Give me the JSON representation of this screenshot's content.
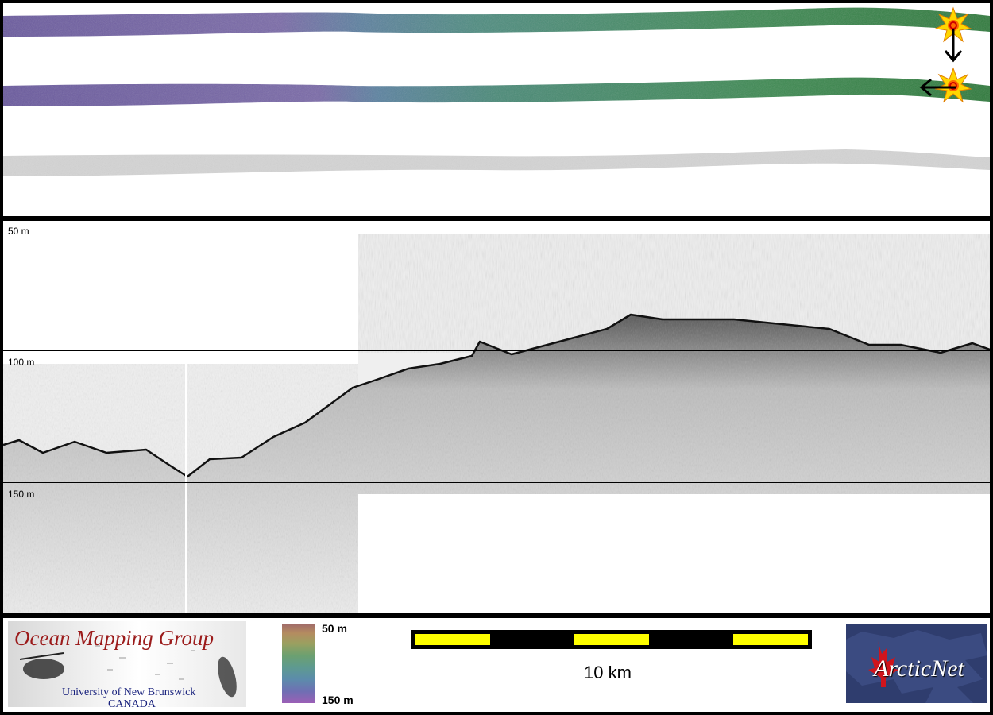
{
  "depth_scale": {
    "top_label": "50 m",
    "middle_label": "100 m",
    "bottom_label": "150 m"
  },
  "footer": {
    "logo_title": "Ocean Mapping Group",
    "logo_subtitle_1": "University of New Brunswick",
    "logo_subtitle_2": "CANADA",
    "colorbar_top": "50 m",
    "colorbar_bottom": "150 m",
    "scale_label": "10 km",
    "partner_logo": "ArcticNet"
  },
  "colors": {
    "swath_deep": "#7a5fa8",
    "swath_mid": "#4f8a86",
    "swath_shallow": "#2f7a3c",
    "backscatter": "#c8c8c8",
    "scalebar_fill": "#ffff00",
    "logo_red": "#9b1b1b",
    "logo_blue": "#1a237e"
  },
  "icons": {
    "marker": "sun-burst-icon",
    "arrow_down": "arrow-down-icon",
    "arrow_left": "arrow-left-icon"
  }
}
